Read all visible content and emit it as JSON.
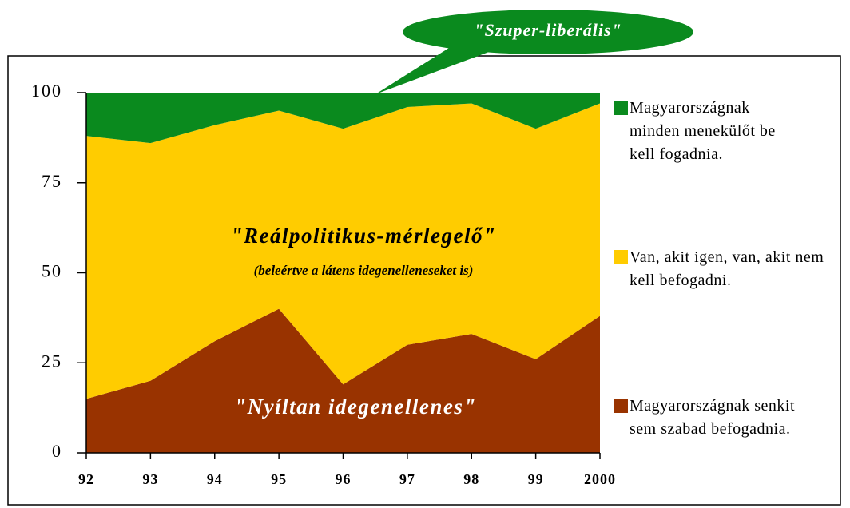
{
  "chart_data": {
    "type": "stacked_area",
    "categories": [
      "92",
      "93",
      "94",
      "95",
      "96",
      "97",
      "98",
      "99",
      "2000"
    ],
    "series": [
      {
        "name": "Magyarországnak senkit sem szabad befogadnia.",
        "color": "#993300",
        "values": [
          15,
          20,
          31,
          40,
          19,
          30,
          33,
          26,
          38
        ]
      },
      {
        "name": "Van, akit igen, van, akit nem kell befogadni.",
        "color": "#ffcc00",
        "values": [
          73,
          66,
          60,
          55,
          71,
          66,
          64,
          64,
          59
        ]
      },
      {
        "name": "Magyarországnak minden menekülőt be kell fogadnia.",
        "color": "#0a8a1e",
        "values": [
          12,
          14,
          9,
          5,
          10,
          4,
          3,
          10,
          3
        ]
      }
    ],
    "ylim": [
      0,
      100
    ],
    "yticks": [
      0,
      25,
      50,
      75,
      100
    ],
    "annotations": [
      "\"Szuper-liberális\"",
      "\"Reálpolitikus-mérlegelő\"",
      "(beleértve a látens idegenelleneseket is)",
      "\"Nyíltan idegenellenes\""
    ]
  }
}
